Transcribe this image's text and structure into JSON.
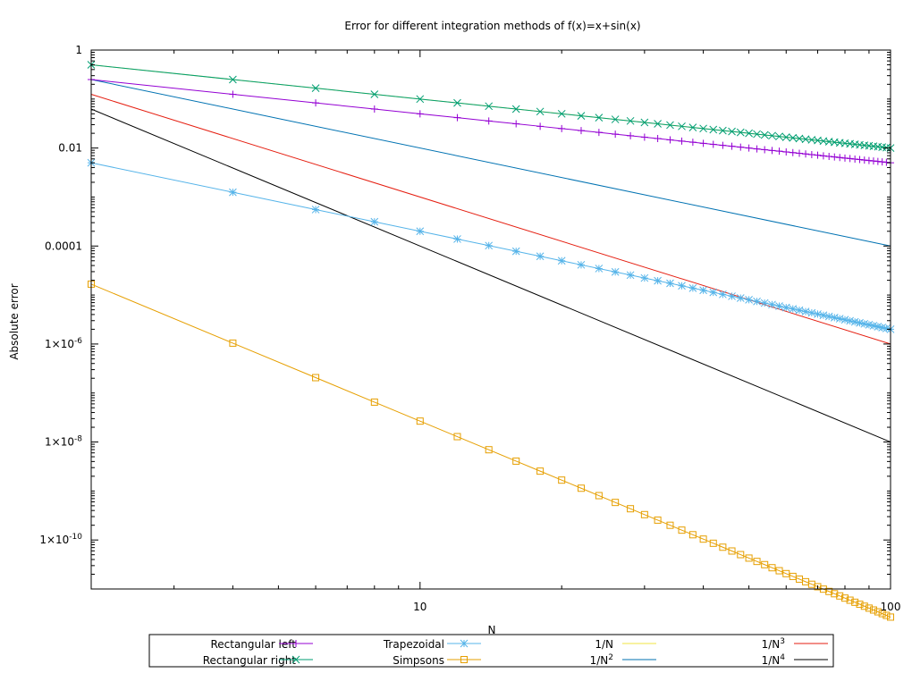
{
  "chart_data": {
    "type": "line",
    "title": "Error for different integration methods of f(x)=x+sin(x)",
    "xlabel": "N",
    "ylabel": "Absolute error",
    "xscale": "log",
    "yscale": "log",
    "xlim": [
      2,
      100
    ],
    "ylim": [
      1e-11,
      1
    ],
    "x_ticks": [
      {
        "value": 10,
        "label": "10"
      },
      {
        "value": 100,
        "label": "100"
      }
    ],
    "y_ticks": [
      {
        "value": 1,
        "label": "1"
      },
      {
        "value": 0.01,
        "label": "0.01"
      },
      {
        "value": 0.0001,
        "label": "0.0001"
      },
      {
        "value": 1e-06,
        "label": "1×10-6",
        "base": "1×10",
        "exp": "-6"
      },
      {
        "value": 1e-08,
        "label": "1×10-8",
        "base": "1×10",
        "exp": "-8"
      },
      {
        "value": 1e-10,
        "label": "1×10-10",
        "base": "1×10",
        "exp": "-10"
      }
    ],
    "grid": false,
    "legend_position": "bottom",
    "series": [
      {
        "name": "Rectangular left",
        "color": "#9400d3",
        "marker": "plus",
        "formula": "0.5/N"
      },
      {
        "name": "Rectangular right",
        "color": "#009e73",
        "marker": "cross",
        "formula": "1/N"
      },
      {
        "name": "Trapezoidal",
        "color": "#56b4e9",
        "marker": "star",
        "formula": "0.02/N^2"
      },
      {
        "name": "Simpsons",
        "color": "#e69f00",
        "marker": "square",
        "formula": "2.67e-4/N^4"
      },
      {
        "name": "1/N",
        "color": "#f0e442",
        "marker": "none",
        "formula": "1/N"
      },
      {
        "name": "1/N2",
        "name_base": "1/N",
        "name_sup": "2",
        "color": "#0072b2",
        "marker": "none",
        "formula": "1/N^2"
      },
      {
        "name": "1/N3",
        "name_base": "1/N",
        "name_sup": "3",
        "color": "#e51e10",
        "marker": "none",
        "formula": "1/N^3"
      },
      {
        "name": "1/N4",
        "name_base": "1/N",
        "name_sup": "4",
        "color": "#000000",
        "marker": "none",
        "formula": "1/N^4"
      }
    ],
    "x": [
      2,
      4,
      6,
      8,
      10,
      12,
      14,
      16,
      18,
      20,
      22,
      24,
      26,
      28,
      30,
      32,
      34,
      36,
      38,
      40,
      42,
      44,
      46,
      48,
      50,
      52,
      54,
      56,
      58,
      60,
      62,
      64,
      66,
      68,
      70,
      72,
      74,
      76,
      78,
      80,
      82,
      84,
      86,
      88,
      90,
      92,
      94,
      96,
      98,
      100
    ]
  }
}
